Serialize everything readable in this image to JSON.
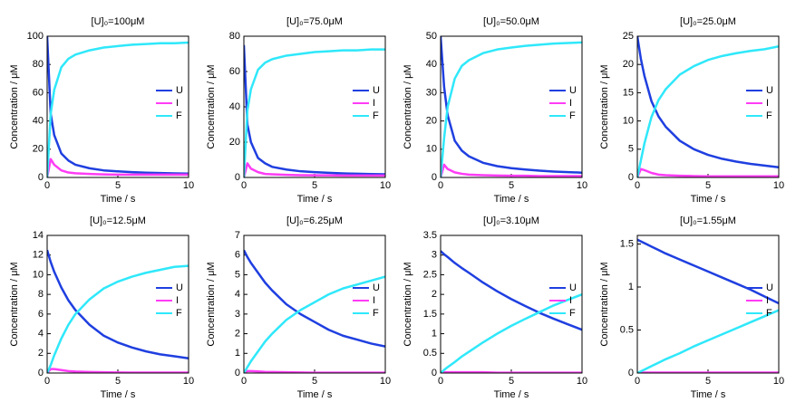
{
  "chart_data": [
    {
      "type": "line",
      "title": "[U]₀=100μM",
      "xlabel": "Time / s",
      "ylabel": "Concentration / μM",
      "legend": "right",
      "x": [
        0,
        0.25,
        0.5,
        1,
        1.5,
        2,
        3,
        4,
        5,
        6,
        7,
        8,
        9,
        10
      ],
      "xlim": [
        0,
        10
      ],
      "xticks": [
        0,
        5,
        10
      ],
      "ylim": [
        0,
        100
      ],
      "yticks": [
        0,
        20,
        40,
        60,
        80,
        100
      ],
      "series": [
        {
          "name": "U",
          "color": "#1f3fe0",
          "values": [
            100,
            45,
            30,
            17,
            12,
            9,
            6.5,
            5,
            4.3,
            3.8,
            3.4,
            3.1,
            2.9,
            2.7
          ]
        },
        {
          "name": "I",
          "color": "#ff3cf5",
          "values": [
            0,
            13,
            9,
            5,
            3.5,
            3,
            2.5,
            2.2,
            2,
            2,
            2,
            2,
            2,
            2
          ]
        },
        {
          "name": "F",
          "color": "#2fe8fa",
          "values": [
            0,
            45,
            62,
            78,
            84,
            87,
            90,
            92,
            93,
            94,
            94.5,
            95,
            95,
            95.5
          ]
        }
      ]
    },
    {
      "type": "line",
      "title": "[U]₀=75.0μM",
      "xlabel": "Time / s",
      "ylabel": "Concentration / μM",
      "legend": "right",
      "x": [
        0,
        0.25,
        0.5,
        1,
        1.5,
        2,
        3,
        4,
        5,
        6,
        7,
        8,
        9,
        10
      ],
      "xlim": [
        0,
        10
      ],
      "xticks": [
        0,
        5,
        10
      ],
      "ylim": [
        0,
        80
      ],
      "yticks": [
        0,
        20,
        40,
        60,
        80
      ],
      "series": [
        {
          "name": "U",
          "color": "#1f3fe0",
          "values": [
            75,
            30,
            20,
            11,
            8,
            6,
            4.5,
            3.5,
            3,
            2.6,
            2.3,
            2.1,
            1.9,
            1.8
          ]
        },
        {
          "name": "I",
          "color": "#ff3cf5",
          "values": [
            0,
            8,
            5,
            3,
            2,
            1.8,
            1.5,
            1.3,
            1.2,
            1.2,
            1.1,
            1.1,
            1.1,
            1.1
          ]
        },
        {
          "name": "F",
          "color": "#2fe8fa",
          "values": [
            0,
            38,
            50,
            61,
            65,
            67,
            69,
            70,
            71,
            71.5,
            72,
            72,
            72.5,
            72.5
          ]
        }
      ]
    },
    {
      "type": "line",
      "title": "[U]₀=50.0μM",
      "xlabel": "Time / s",
      "ylabel": "Concentration / μM",
      "legend": "right",
      "x": [
        0,
        0.25,
        0.5,
        1,
        1.5,
        2,
        3,
        4,
        5,
        6,
        7,
        8,
        9,
        10
      ],
      "xlim": [
        0,
        10
      ],
      "xticks": [
        0,
        5,
        10
      ],
      "ylim": [
        0,
        50
      ],
      "yticks": [
        0,
        10,
        20,
        30,
        40,
        50
      ],
      "series": [
        {
          "name": "U",
          "color": "#1f3fe0",
          "values": [
            50,
            32,
            22,
            13,
            9.5,
            7.5,
            5.2,
            4,
            3.3,
            2.8,
            2.4,
            2.1,
            1.9,
            1.7
          ]
        },
        {
          "name": "I",
          "color": "#ff3cf5",
          "values": [
            0,
            4.5,
            3,
            1.8,
            1.3,
            1,
            0.8,
            0.7,
            0.6,
            0.6,
            0.5,
            0.5,
            0.5,
            0.5
          ]
        },
        {
          "name": "F",
          "color": "#2fe8fa",
          "values": [
            0,
            14,
            25,
            35,
            39.5,
            41.5,
            44,
            45.3,
            46,
            46.6,
            47,
            47.4,
            47.6,
            47.8
          ]
        }
      ]
    },
    {
      "type": "line",
      "title": "[U]₀=25.0μM",
      "xlabel": "Time / s",
      "ylabel": "Concentration / μM",
      "legend": "right",
      "x": [
        0,
        0.25,
        0.5,
        1,
        1.5,
        2,
        3,
        4,
        5,
        6,
        7,
        8,
        9,
        10
      ],
      "xlim": [
        0,
        10
      ],
      "xticks": [
        0,
        5,
        10
      ],
      "ylim": [
        0,
        25
      ],
      "yticks": [
        0,
        5,
        10,
        15,
        20,
        25
      ],
      "series": [
        {
          "name": "U",
          "color": "#1f3fe0",
          "values": [
            25,
            21,
            18,
            13.5,
            10.8,
            9,
            6.5,
            5,
            4,
            3.3,
            2.8,
            2.4,
            2.1,
            1.8
          ]
        },
        {
          "name": "I",
          "color": "#ff3cf5",
          "values": [
            0,
            1.5,
            1.3,
            0.8,
            0.5,
            0.4,
            0.3,
            0.25,
            0.2,
            0.2,
            0.2,
            0.2,
            0.2,
            0.2
          ]
        },
        {
          "name": "F",
          "color": "#2fe8fa",
          "values": [
            0,
            3,
            6,
            10.7,
            13.7,
            15.6,
            18.2,
            19.7,
            20.8,
            21.5,
            22,
            22.4,
            22.7,
            23.2
          ]
        }
      ]
    },
    {
      "type": "line",
      "title": "[U]₀=12.5μM",
      "xlabel": "Time / s",
      "ylabel": "Concentration / μM",
      "legend": "right",
      "x": [
        0,
        0.25,
        0.5,
        1,
        1.5,
        2,
        3,
        4,
        5,
        6,
        7,
        8,
        9,
        10
      ],
      "xlim": [
        0,
        10
      ],
      "xticks": [
        0,
        5,
        10
      ],
      "ylim": [
        0,
        14
      ],
      "yticks": [
        0,
        2,
        4,
        6,
        8,
        10,
        12,
        14
      ],
      "series": [
        {
          "name": "U",
          "color": "#1f3fe0",
          "values": [
            12.5,
            11.3,
            10.3,
            8.7,
            7.4,
            6.4,
            4.9,
            3.8,
            3.1,
            2.6,
            2.2,
            1.9,
            1.7,
            1.5
          ]
        },
        {
          "name": "I",
          "color": "#ff3cf5",
          "values": [
            0,
            0.4,
            0.4,
            0.3,
            0.2,
            0.15,
            0.1,
            0.08,
            0.06,
            0.05,
            0.05,
            0.05,
            0.05,
            0.05
          ]
        },
        {
          "name": "F",
          "color": "#2fe8fa",
          "values": [
            0,
            0.8,
            1.8,
            3.5,
            4.9,
            6,
            7.5,
            8.6,
            9.3,
            9.8,
            10.2,
            10.5,
            10.8,
            10.9
          ]
        }
      ]
    },
    {
      "type": "line",
      "title": "[U]₀=6.25μM",
      "xlabel": "Time / s",
      "ylabel": "Concentration / μM",
      "legend": "right",
      "x": [
        0,
        0.25,
        0.5,
        1,
        1.5,
        2,
        3,
        4,
        5,
        6,
        7,
        8,
        9,
        10
      ],
      "xlim": [
        0,
        10
      ],
      "xticks": [
        0,
        5,
        10
      ],
      "ylim": [
        0,
        7
      ],
      "yticks": [
        0,
        1,
        2,
        3,
        4,
        5,
        6,
        7
      ],
      "series": [
        {
          "name": "U",
          "color": "#1f3fe0",
          "values": [
            6.25,
            5.9,
            5.6,
            5.1,
            4.6,
            4.2,
            3.5,
            3,
            2.6,
            2.2,
            1.9,
            1.7,
            1.5,
            1.35
          ]
        },
        {
          "name": "I",
          "color": "#ff3cf5",
          "values": [
            0,
            0.1,
            0.1,
            0.08,
            0.06,
            0.05,
            0.04,
            0.03,
            0.02,
            0.02,
            0.02,
            0.02,
            0.02,
            0.02
          ]
        },
        {
          "name": "F",
          "color": "#2fe8fa",
          "values": [
            0,
            0.3,
            0.6,
            1.1,
            1.6,
            2,
            2.7,
            3.2,
            3.6,
            4,
            4.3,
            4.5,
            4.7,
            4.9
          ]
        }
      ]
    },
    {
      "type": "line",
      "title": "[U]₀=3.10μM",
      "xlabel": "Time / s",
      "ylabel": "Concentration / μM",
      "legend": "right",
      "x": [
        0,
        0.25,
        0.5,
        1,
        1.5,
        2,
        3,
        4,
        5,
        6,
        7,
        8,
        9,
        10
      ],
      "xlim": [
        0,
        10
      ],
      "xticks": [
        0,
        5,
        10
      ],
      "ylim": [
        0,
        3.5
      ],
      "yticks": [
        0,
        0.5,
        1,
        1.5,
        2,
        2.5,
        3,
        3.5
      ],
      "series": [
        {
          "name": "U",
          "color": "#1f3fe0",
          "values": [
            3.1,
            3.02,
            2.95,
            2.8,
            2.67,
            2.55,
            2.3,
            2.08,
            1.88,
            1.7,
            1.53,
            1.38,
            1.24,
            1.1
          ]
        },
        {
          "name": "I",
          "color": "#ff3cf5",
          "values": [
            0,
            0.02,
            0.02,
            0.02,
            0.02,
            0.02,
            0.02,
            0.01,
            0.01,
            0.01,
            0.01,
            0.01,
            0.01,
            0.01
          ]
        },
        {
          "name": "F",
          "color": "#2fe8fa",
          "values": [
            0,
            0.08,
            0.15,
            0.28,
            0.42,
            0.54,
            0.78,
            1,
            1.2,
            1.38,
            1.55,
            1.72,
            1.86,
            2
          ]
        }
      ]
    },
    {
      "type": "line",
      "title": "[U]₀=1.55μM",
      "xlabel": "Time / s",
      "ylabel": "Concentration / μM",
      "legend": "right",
      "x": [
        0,
        0.25,
        0.5,
        1,
        1.5,
        2,
        3,
        4,
        5,
        6,
        7,
        8,
        9,
        10
      ],
      "xlim": [
        0,
        10
      ],
      "xticks": [
        0,
        5,
        10
      ],
      "ylim": [
        0,
        1.6
      ],
      "yticks": [
        0,
        0.5,
        1,
        1.5
      ],
      "series": [
        {
          "name": "U",
          "color": "#1f3fe0",
          "values": [
            1.55,
            1.53,
            1.51,
            1.47,
            1.43,
            1.39,
            1.32,
            1.25,
            1.18,
            1.11,
            1.04,
            0.97,
            0.89,
            0.81
          ]
        },
        {
          "name": "I",
          "color": "#ff3cf5",
          "values": [
            0,
            0.005,
            0.005,
            0.005,
            0.005,
            0.005,
            0.005,
            0.005,
            0.005,
            0.005,
            0.005,
            0.005,
            0.005,
            0.005
          ]
        },
        {
          "name": "F",
          "color": "#2fe8fa",
          "values": [
            0,
            0.02,
            0.04,
            0.08,
            0.12,
            0.16,
            0.23,
            0.31,
            0.38,
            0.45,
            0.52,
            0.59,
            0.66,
            0.73
          ]
        }
      ]
    }
  ]
}
